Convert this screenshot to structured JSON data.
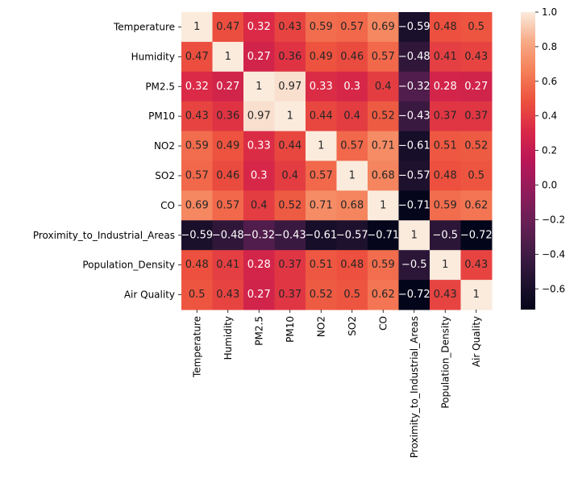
{
  "chart_data": {
    "type": "heatmap",
    "title": "",
    "xlabel": "",
    "ylabel": "",
    "labels": [
      "Temperature",
      "Humidity",
      "PM2.5",
      "PM10",
      "NO2",
      "SO2",
      "CO",
      "Proximity_to_Industrial_Areas",
      "Population_Density",
      "Air Quality"
    ],
    "matrix": [
      [
        1,
        0.47,
        0.32,
        0.43,
        0.59,
        0.57,
        0.69,
        -0.59,
        0.48,
        0.5
      ],
      [
        0.47,
        1,
        0.27,
        0.36,
        0.49,
        0.46,
        0.57,
        -0.48,
        0.41,
        0.43
      ],
      [
        0.32,
        0.27,
        1,
        0.97,
        0.33,
        0.3,
        0.4,
        -0.32,
        0.28,
        0.27
      ],
      [
        0.43,
        0.36,
        0.97,
        1,
        0.44,
        0.4,
        0.52,
        -0.43,
        0.37,
        0.37
      ],
      [
        0.59,
        0.49,
        0.33,
        0.44,
        1,
        0.57,
        0.71,
        -0.61,
        0.51,
        0.52
      ],
      [
        0.57,
        0.46,
        0.3,
        0.4,
        0.57,
        1,
        0.68,
        -0.57,
        0.48,
        0.5
      ],
      [
        0.69,
        0.57,
        0.4,
        0.52,
        0.71,
        0.68,
        1,
        -0.71,
        0.59,
        0.62
      ],
      [
        -0.59,
        -0.48,
        -0.32,
        -0.43,
        -0.61,
        -0.57,
        -0.71,
        1,
        -0.5,
        -0.72
      ],
      [
        0.48,
        0.41,
        0.28,
        0.37,
        0.51,
        0.48,
        0.59,
        -0.5,
        1,
        0.43
      ],
      [
        0.5,
        0.43,
        0.27,
        0.37,
        0.52,
        0.5,
        0.62,
        -0.72,
        0.43,
        1
      ]
    ],
    "annotated": true,
    "colormap": "rocket",
    "colorbar": {
      "min": -0.72,
      "max": 1.0,
      "ticks": [
        1.0,
        0.8,
        0.6,
        0.4,
        0.2,
        0.0,
        -0.2,
        -0.4,
        -0.6
      ],
      "tick_labels": [
        "1.0",
        "0.8",
        "0.6",
        "0.4",
        "0.2",
        "0.0",
        "−0.2",
        "−0.4",
        "−0.6"
      ],
      "placement": "right"
    }
  }
}
